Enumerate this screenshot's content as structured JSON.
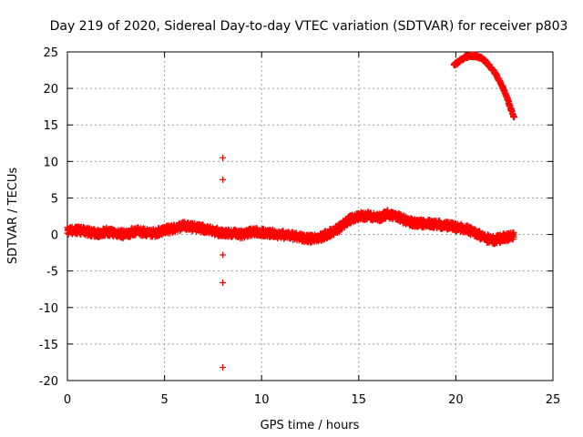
{
  "chart_data": {
    "type": "scatter",
    "title": "Day 219 of 2020, Sidereal Day-to-day VTEC variation (SDTVAR) for receiver p803",
    "xlabel": "GPS time / hours",
    "ylabel": "SDTVAR / TECUs",
    "xlim": [
      0,
      25
    ],
    "ylim": [
      -20,
      25
    ],
    "x_ticks": [
      "0",
      "5",
      "10",
      "15",
      "20",
      "25"
    ],
    "y_ticks": [
      "25",
      "20",
      "15",
      "10",
      "5",
      "0",
      "-5",
      "-10",
      "-15",
      "-20"
    ],
    "grid": true,
    "marker": "+",
    "series": [
      {
        "name": "SDTVAR",
        "color": "#ff0000",
        "band": [
          [
            0.0,
            0.5
          ],
          [
            0.5,
            0.6
          ],
          [
            1.0,
            0.4
          ],
          [
            1.5,
            0.1
          ],
          [
            2.0,
            0.4
          ],
          [
            2.5,
            0.2
          ],
          [
            3.0,
            0.0
          ],
          [
            3.5,
            0.5
          ],
          [
            4.0,
            0.3
          ],
          [
            4.5,
            0.2
          ],
          [
            5.0,
            0.6
          ],
          [
            5.5,
            0.8
          ],
          [
            6.0,
            1.2
          ],
          [
            6.5,
            1.0
          ],
          [
            7.0,
            0.8
          ],
          [
            7.5,
            0.5
          ],
          [
            8.0,
            0.1
          ],
          [
            8.5,
            0.2
          ],
          [
            9.0,
            0.0
          ],
          [
            9.5,
            0.4
          ],
          [
            10.0,
            0.3
          ],
          [
            10.5,
            0.1
          ],
          [
            11.0,
            0.0
          ],
          [
            11.5,
            -0.2
          ],
          [
            12.0,
            -0.4
          ],
          [
            12.5,
            -0.6
          ],
          [
            13.0,
            -0.4
          ],
          [
            13.5,
            0.2
          ],
          [
            14.0,
            0.9
          ],
          [
            14.5,
            2.0
          ],
          [
            15.0,
            2.5
          ],
          [
            15.5,
            2.6
          ],
          [
            16.0,
            2.3
          ],
          [
            16.5,
            2.8
          ],
          [
            17.0,
            2.4
          ],
          [
            17.5,
            1.8
          ],
          [
            18.0,
            1.5
          ],
          [
            18.5,
            1.5
          ],
          [
            19.0,
            1.4
          ],
          [
            19.5,
            1.2
          ],
          [
            20.0,
            1.0
          ],
          [
            20.5,
            0.8
          ],
          [
            21.0,
            0.2
          ],
          [
            21.5,
            -0.5
          ],
          [
            22.0,
            -0.8
          ],
          [
            22.5,
            -0.4
          ],
          [
            23.0,
            -0.2
          ]
        ],
        "arc": [
          [
            19.9,
            23.2
          ],
          [
            20.2,
            23.8
          ],
          [
            20.5,
            24.3
          ],
          [
            20.8,
            24.5
          ],
          [
            21.1,
            24.4
          ],
          [
            21.4,
            24.0
          ],
          [
            21.7,
            23.2
          ],
          [
            22.0,
            22.2
          ],
          [
            22.3,
            20.8
          ],
          [
            22.6,
            19.0
          ],
          [
            22.8,
            17.4
          ],
          [
            23.0,
            16.0
          ]
        ],
        "outliers": [
          [
            8.0,
            10.5
          ],
          [
            8.0,
            7.5
          ],
          [
            8.0,
            -2.8
          ],
          [
            8.0,
            -6.6
          ],
          [
            8.0,
            -18.2
          ]
        ]
      }
    ]
  }
}
